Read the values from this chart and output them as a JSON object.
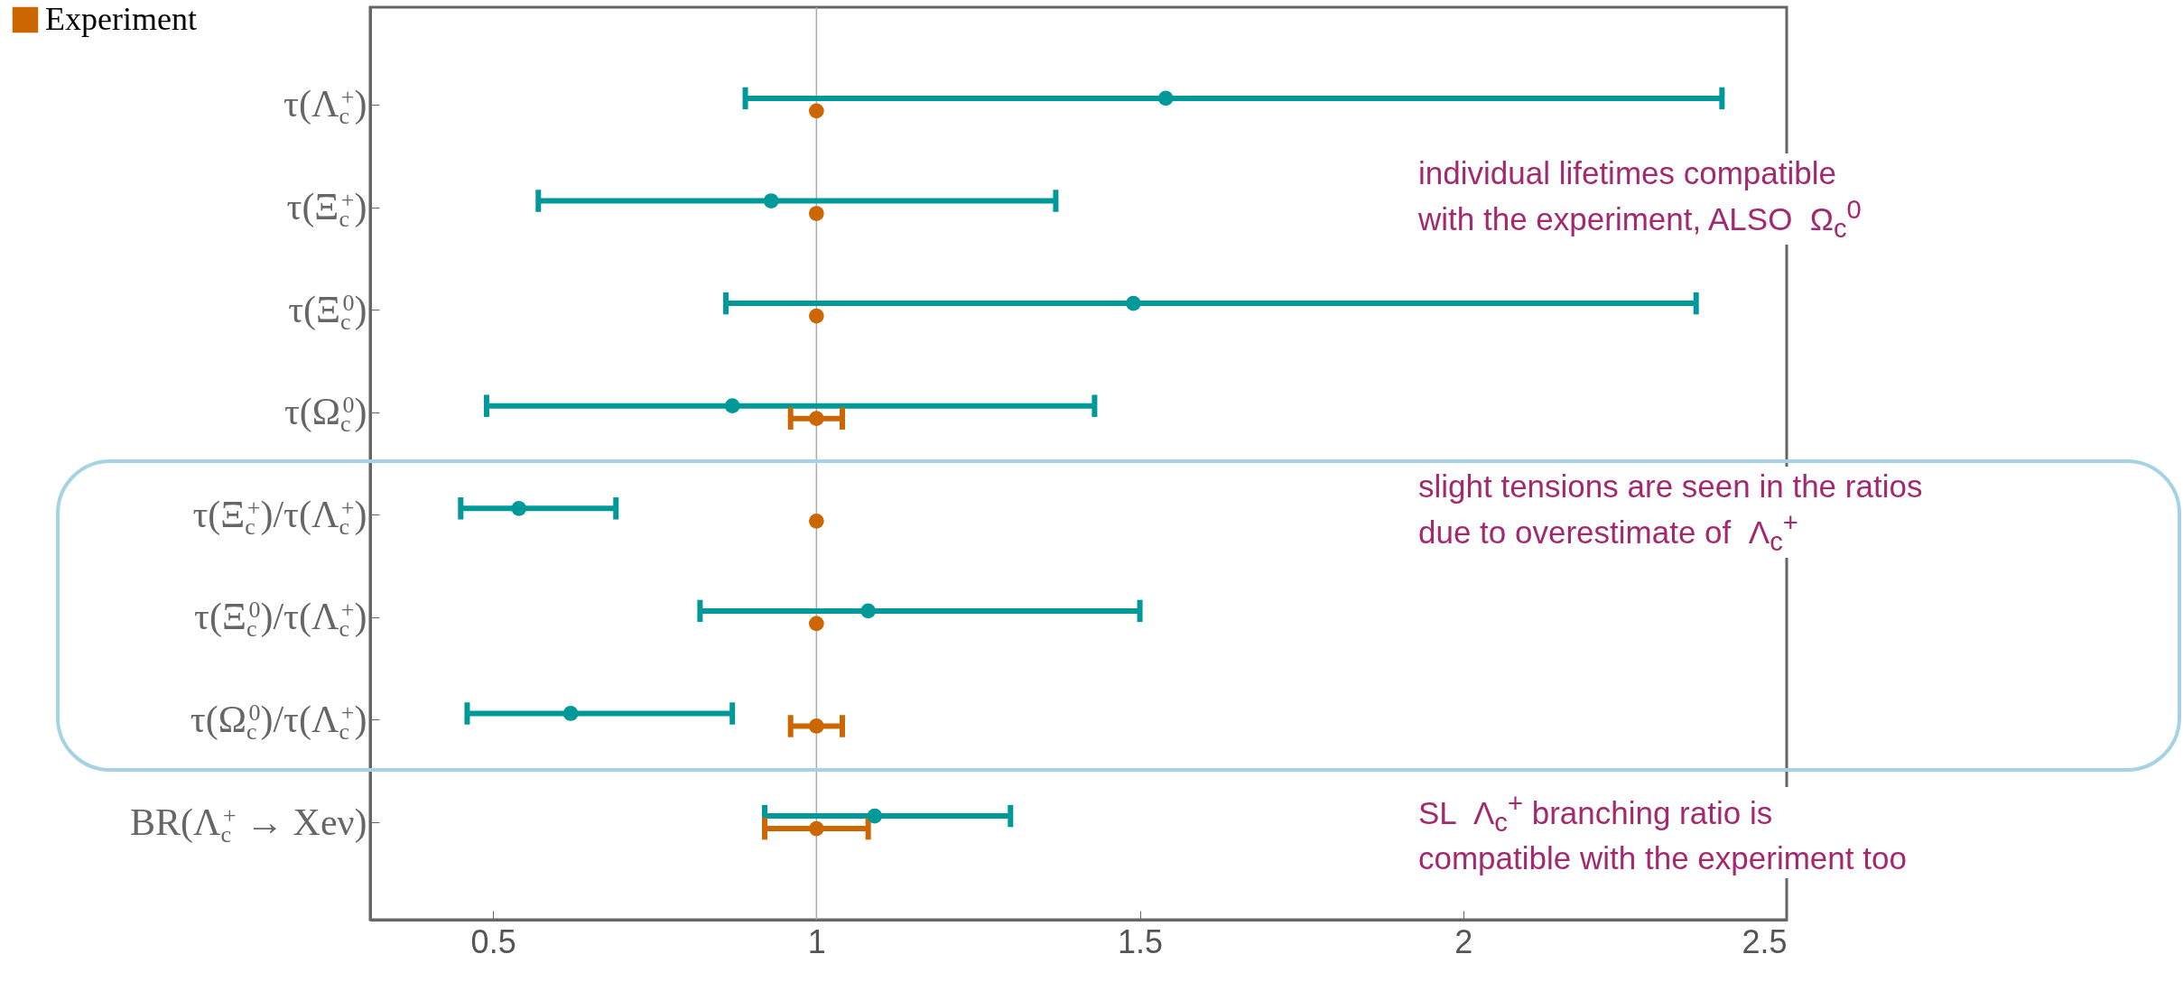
{
  "chart_data": {
    "type": "scatter",
    "orientation": "horizontal",
    "categories": [
      "τ(Λ$_{c}$$^{+}$)",
      "τ(Ξ$_{c}$$^{+}$)",
      "τ(Ξ$_{c}$$^{0}$)",
      "τ(Ω$_{c}$$^{0}$)",
      "τ(Ξ$_{c}$$^{+}$)/τ(Λ$_{c}$$^{+}$)",
      "τ(Ξ$_{c}$$^{0}$)/τ(Λ$_{c}$$^{+}$)",
      "τ(Ω$_{c}$$^{0}$)/τ(Λ$_{c}$$^{+}$)",
      "BR(Λ$_{c}$$^{+}$ → Xeν)"
    ],
    "series": [
      {
        "color": "#009999",
        "values": [
          1.54,
          0.93,
          1.49,
          0.87,
          0.54,
          1.08,
          0.62,
          1.09
        ],
        "errors": [
          [
            0.89,
            2.4
          ],
          [
            0.57,
            1.37
          ],
          [
            0.86,
            2.36
          ],
          [
            0.49,
            1.43
          ],
          [
            0.45,
            0.69
          ],
          [
            0.82,
            1.5
          ],
          [
            0.46,
            0.87
          ],
          [
            0.92,
            1.3
          ]
        ]
      },
      {
        "name": "Experiment",
        "color": "#cc6600",
        "values": [
          1,
          1,
          1,
          1,
          1,
          1,
          1,
          1
        ],
        "errors": [
          null,
          null,
          null,
          0.04,
          null,
          null,
          0.04,
          [
            0.92,
            1.08
          ]
        ]
      }
    ],
    "xlim": [
      0.31,
      2.5
    ],
    "xticks": [
      0.5,
      1,
      1.5,
      2,
      2.5
    ],
    "ref_lines": [
      {
        "axis": "x",
        "value": 1,
        "color": "#aaaaaa"
      }
    ],
    "legend": "top left",
    "marker": "circle",
    "grid": false,
    "annotations": [
      "individual lifetimes compatible\nwith the experiment, ALSO  Ω$_{c}$$^{0}$",
      "slight tensions are seen in the ratios\ndue to overestimate of  Λ$_{c}$$^{+}$",
      "SL  Λ$_{c}$$^{+}$ branching ratio is\ncompatible with the experiment too"
    ]
  }
}
